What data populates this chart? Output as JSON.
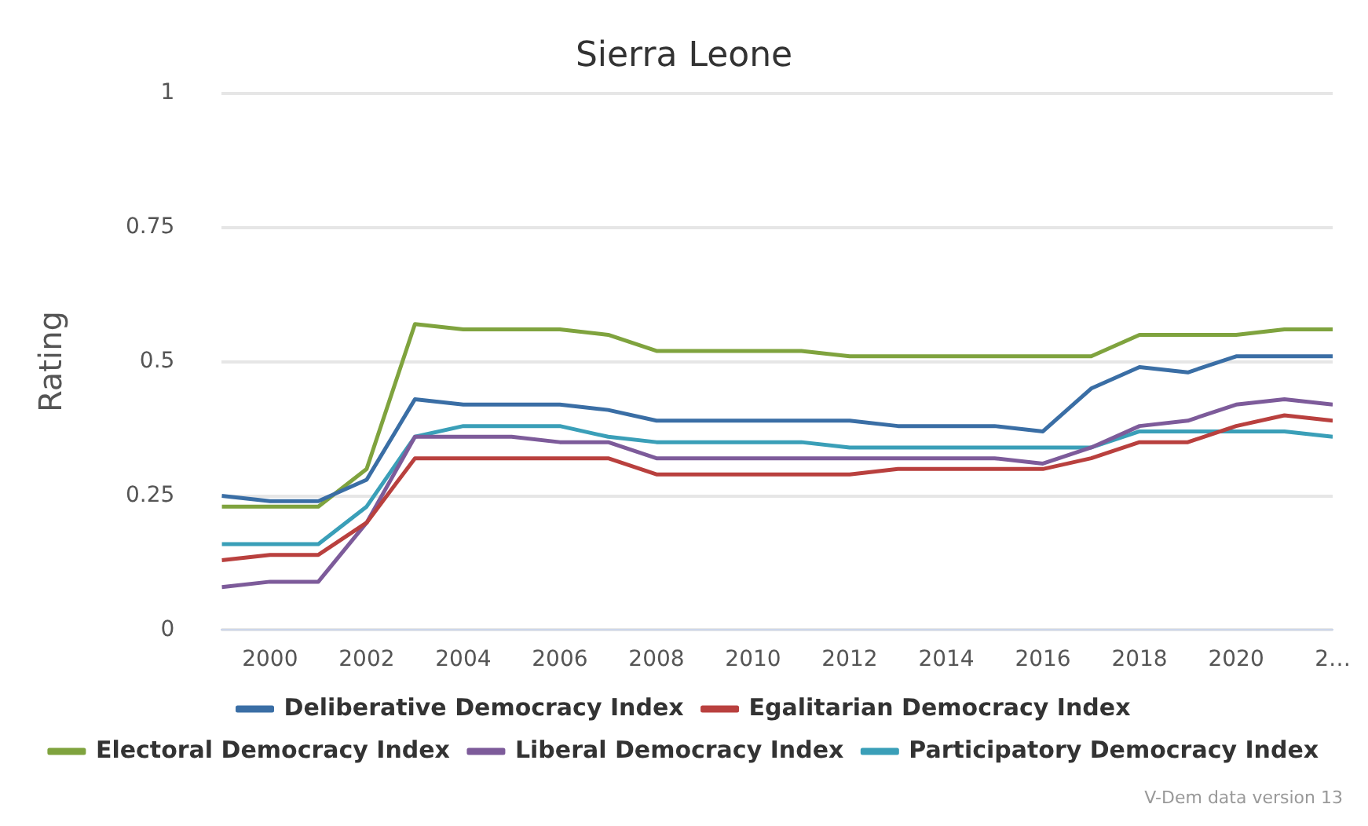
{
  "chart_data": {
    "type": "line",
    "title": "Sierra Leone",
    "ylabel": "Rating",
    "x": [
      1999,
      2000,
      2001,
      2002,
      2003,
      2004,
      2005,
      2006,
      2007,
      2008,
      2009,
      2010,
      2011,
      2012,
      2013,
      2014,
      2015,
      2016,
      2017,
      2018,
      2019,
      2020,
      2021,
      2022
    ],
    "xlim": [
      1999,
      2022
    ],
    "xticks": [
      2000,
      2002,
      2004,
      2006,
      2008,
      2010,
      2012,
      2014,
      2016,
      2018,
      2020,
      {
        "value": 2022,
        "label": "2…"
      }
    ],
    "ylim": [
      0,
      1
    ],
    "yticks": [
      0,
      0.25,
      0.5,
      0.75,
      1
    ],
    "grid": "y",
    "legend": "bottom",
    "marker": "none",
    "line_style": "solid",
    "annotations": [
      "V-Dem data version 13"
    ],
    "series": [
      {
        "name": "Deliberative Democracy Index",
        "color": "#3a6ea5",
        "values": [
          0.25,
          0.24,
          0.24,
          0.28,
          0.43,
          0.42,
          0.42,
          0.42,
          0.41,
          0.39,
          0.39,
          0.39,
          0.39,
          0.39,
          0.38,
          0.38,
          0.38,
          0.37,
          0.45,
          0.49,
          0.48,
          0.51,
          0.51,
          0.51
        ]
      },
      {
        "name": "Egalitarian Democracy Index",
        "color": "#b9403e",
        "values": [
          0.13,
          0.14,
          0.14,
          0.2,
          0.32,
          0.32,
          0.32,
          0.32,
          0.32,
          0.29,
          0.29,
          0.29,
          0.29,
          0.29,
          0.3,
          0.3,
          0.3,
          0.3,
          0.32,
          0.35,
          0.35,
          0.38,
          0.4,
          0.39
        ]
      },
      {
        "name": "Electoral Democracy Index",
        "color": "#7fa33e",
        "values": [
          0.23,
          0.23,
          0.23,
          0.3,
          0.57,
          0.56,
          0.56,
          0.56,
          0.55,
          0.52,
          0.52,
          0.52,
          0.52,
          0.51,
          0.51,
          0.51,
          0.51,
          0.51,
          0.51,
          0.55,
          0.55,
          0.55,
          0.56,
          0.56
        ]
      },
      {
        "name": "Liberal Democracy Index",
        "color": "#7d5b9a",
        "values": [
          0.08,
          0.09,
          0.09,
          0.2,
          0.36,
          0.36,
          0.36,
          0.35,
          0.35,
          0.32,
          0.32,
          0.32,
          0.32,
          0.32,
          0.32,
          0.32,
          0.32,
          0.31,
          0.34,
          0.38,
          0.39,
          0.42,
          0.43,
          0.42
        ]
      },
      {
        "name": "Participatory Democracy Index",
        "color": "#3a9fb8",
        "values": [
          0.16,
          0.16,
          0.16,
          0.23,
          0.36,
          0.38,
          0.38,
          0.38,
          0.36,
          0.35,
          0.35,
          0.35,
          0.35,
          0.34,
          0.34,
          0.34,
          0.34,
          0.34,
          0.34,
          0.37,
          0.37,
          0.37,
          0.37,
          0.36
        ]
      }
    ]
  }
}
